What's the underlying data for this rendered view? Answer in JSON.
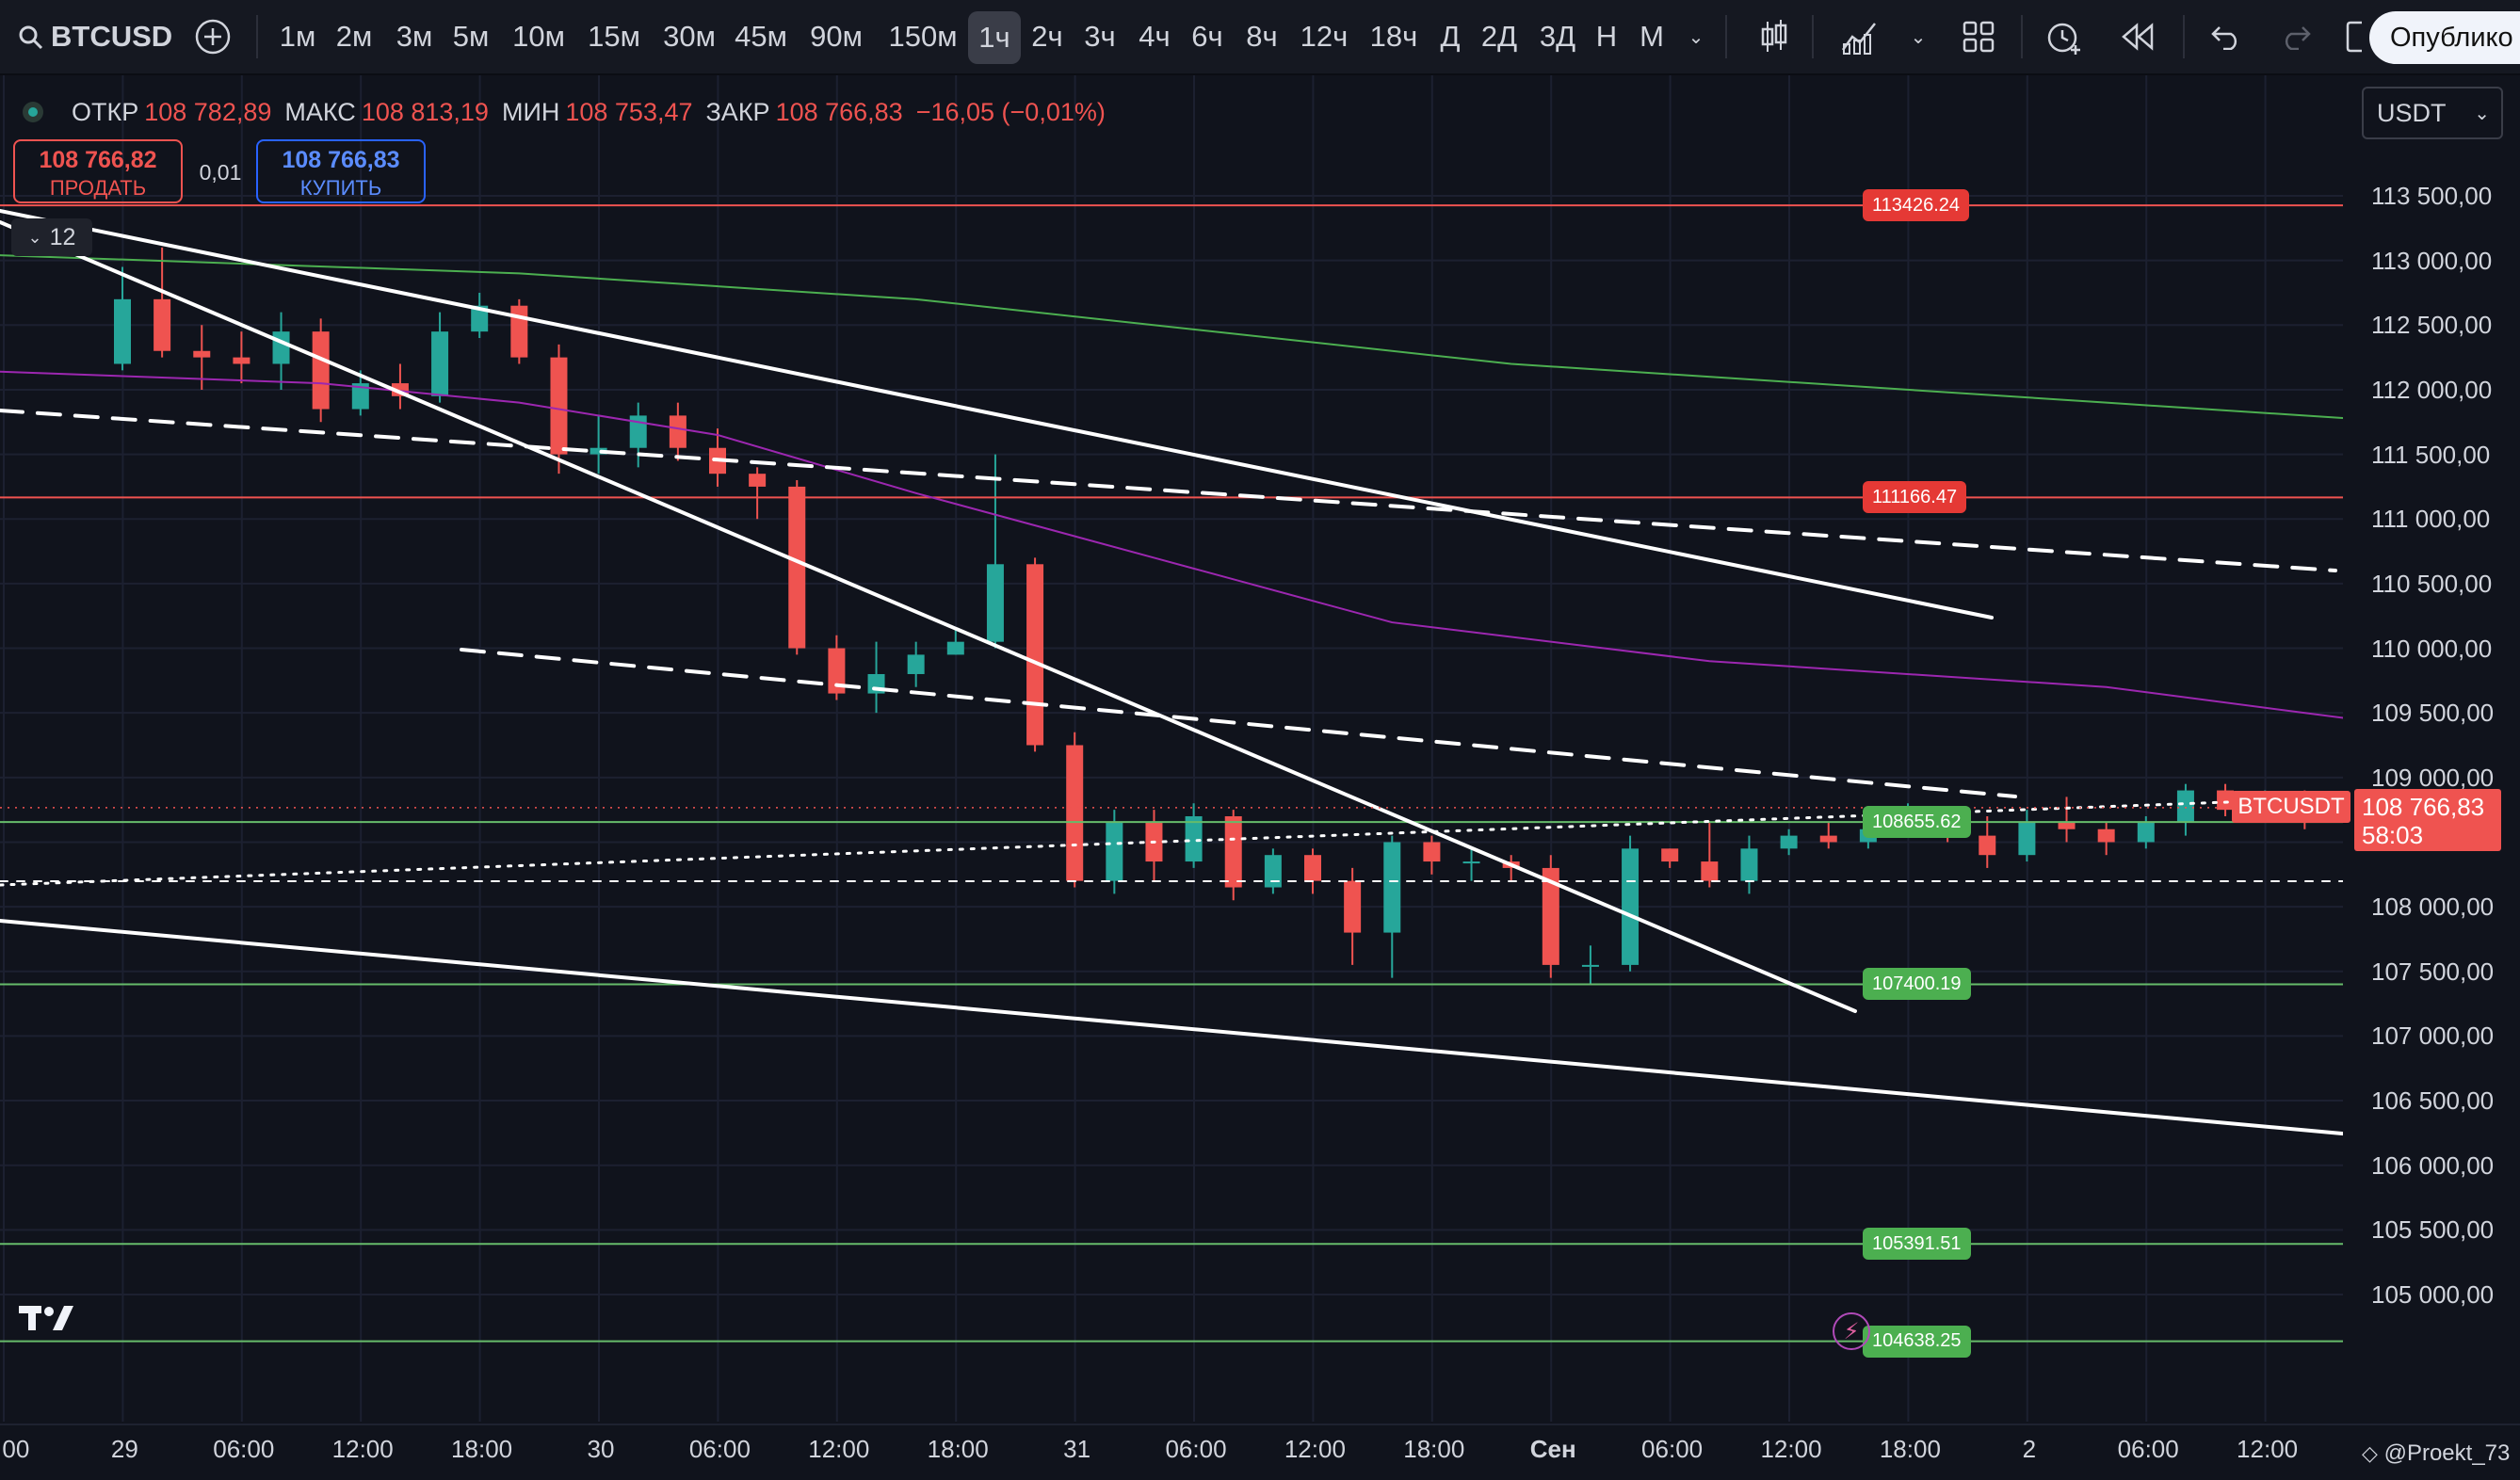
{
  "toolbar": {
    "symbol": "BTCUSD",
    "intervals": [
      "1м",
      "2м",
      "3м",
      "5м",
      "10м",
      "15м",
      "30м",
      "45м",
      "90м",
      "150м",
      "1ч",
      "2ч",
      "3ч",
      "4ч",
      "6ч",
      "8ч",
      "12ч",
      "18ч",
      "Д",
      "2Д",
      "3Д",
      "Н",
      "М"
    ],
    "active_interval": "1ч",
    "publish_label": "Опублико"
  },
  "legend": {
    "open_label": "ОТКР",
    "open": "108 782,89",
    "high_label": "МАКС",
    "high": "108 813,19",
    "low_label": "МИН",
    "low": "108 753,47",
    "close_label": "ЗАКР",
    "close": "108 766,83",
    "change": "−16,05 (−0,01%)"
  },
  "trade": {
    "sell_price": "108 766,82",
    "sell_label": "ПРОДАТЬ",
    "spread": "0,01",
    "buy_price": "108 766,83",
    "buy_label": "КУПИТЬ"
  },
  "currency": "USDT",
  "indicator_count": "12",
  "price_axis": [
    "113 500,00",
    "113 000,00",
    "112 500,00",
    "112 000,00",
    "111 500,00",
    "111 000,00",
    "110 500,00",
    "110 000,00",
    "109 500,00",
    "109 000,00",
    "108 000,00",
    "107 500,00",
    "107 000,00",
    "106 500,00",
    "106 000,00",
    "105 500,00",
    "105 000,00"
  ],
  "time_axis": [
    "3:00",
    "29",
    "06:00",
    "12:00",
    "18:00",
    "30",
    "06:00",
    "12:00",
    "18:00",
    "31",
    "06:00",
    "12:00",
    "18:00",
    "Сен",
    "06:00",
    "12:00",
    "18:00",
    "2",
    "06:00",
    "12:00"
  ],
  "level_tags": [
    "113426.24",
    "111166.47",
    "108655.62",
    "107400.19",
    "105391.51",
    "104638.25"
  ],
  "last_price": {
    "symbol": "BTCUSDT",
    "price": "108 766,83",
    "countdown": "58:03"
  },
  "watermark": "@Proekt_73",
  "colors": {
    "up": "#26a69a",
    "down": "#ef5350",
    "bg": "#10131c",
    "level_red": "#ef5350",
    "level_green": "#66bb6a"
  },
  "chart_data": {
    "type": "candlestick",
    "symbol": "BTCUSD",
    "interval": "1ч",
    "ylim": [
      104650,
      113750
    ],
    "horizontal_levels": [
      113426.24,
      111166.47,
      108655.62,
      107400.19,
      105391.51,
      104638.25
    ],
    "candles": [
      [
        112200,
        112700,
        112150,
        112950
      ],
      [
        112700,
        112300,
        112250,
        113100
      ],
      [
        112300,
        112250,
        112000,
        112500
      ],
      [
        112250,
        112200,
        112050,
        112450
      ],
      [
        112200,
        112450,
        112000,
        112600
      ],
      [
        112450,
        111850,
        111750,
        112550
      ],
      [
        111850,
        112050,
        111800,
        112150
      ],
      [
        112050,
        111950,
        111850,
        112200
      ],
      [
        111950,
        112450,
        111900,
        112600
      ],
      [
        112450,
        112650,
        112400,
        112750
      ],
      [
        112650,
        112250,
        112200,
        112700
      ],
      [
        112250,
        111500,
        111350,
        112350
      ],
      [
        111500,
        111550,
        111350,
        111800
      ],
      [
        111550,
        111800,
        111400,
        111900
      ],
      [
        111800,
        111550,
        111450,
        111900
      ],
      [
        111550,
        111350,
        111250,
        111700
      ],
      [
        111350,
        111250,
        111000,
        111400
      ],
      [
        111250,
        110000,
        109950,
        111300
      ],
      [
        110000,
        109650,
        109600,
        110100
      ],
      [
        109650,
        109800,
        109500,
        110050
      ],
      [
        109800,
        109950,
        109700,
        110050
      ],
      [
        109950,
        110050,
        109950,
        110150
      ],
      [
        110050,
        110650,
        110000,
        111500
      ],
      [
        110650,
        109250,
        109200,
        110700
      ],
      [
        109250,
        108200,
        108150,
        109350
      ],
      [
        108200,
        108650,
        108100,
        108750
      ],
      [
        108650,
        108350,
        108200,
        108750
      ],
      [
        108350,
        108700,
        108300,
        108800
      ],
      [
        108700,
        108150,
        108050,
        108750
      ],
      [
        108150,
        108400,
        108100,
        108450
      ],
      [
        108400,
        108200,
        108100,
        108450
      ],
      [
        108200,
        107800,
        107550,
        108300
      ],
      [
        107800,
        108500,
        107450,
        108550
      ],
      [
        108500,
        108350,
        108250,
        108550
      ],
      [
        108350,
        108350,
        108200,
        108450
      ],
      [
        108350,
        108300,
        108200,
        108400
      ],
      [
        108300,
        107550,
        107450,
        108400
      ],
      [
        107550,
        107550,
        107400,
        107700
      ],
      [
        107550,
        108450,
        107500,
        108550
      ],
      [
        108450,
        108350,
        108300,
        108450
      ],
      [
        108350,
        108200,
        108150,
        108650
      ],
      [
        108200,
        108450,
        108100,
        108550
      ],
      [
        108450,
        108550,
        108400,
        108600
      ],
      [
        108550,
        108500,
        108450,
        108650
      ],
      [
        108500,
        108600,
        108450,
        108750
      ],
      [
        108600,
        108700,
        108550,
        108800
      ],
      [
        108700,
        108550,
        108500,
        108750
      ],
      [
        108550,
        108400,
        108300,
        108700
      ],
      [
        108400,
        108650,
        108350,
        108750
      ],
      [
        108650,
        108600,
        108500,
        108850
      ],
      [
        108600,
        108500,
        108400,
        108650
      ],
      [
        108500,
        108650,
        108450,
        108700
      ],
      [
        108650,
        108900,
        108550,
        108950
      ],
      [
        108900,
        108750,
        108700,
        108950
      ],
      [
        108750,
        108850,
        108700,
        108900
      ],
      [
        108850,
        108750,
        108600,
        108900
      ],
      [
        108750,
        108650,
        108550,
        108850
      ],
      [
        108650,
        108900,
        108600,
        108950
      ],
      [
        108900,
        108650,
        108550,
        108950
      ],
      [
        108650,
        108600,
        108500,
        108700
      ],
      [
        108600,
        108550,
        108500,
        108650
      ],
      [
        108550,
        108800,
        108500,
        109150
      ],
      [
        108800,
        109350,
        108750,
        109450
      ],
      [
        109350,
        109300,
        109250,
        109450
      ],
      [
        109300,
        109150,
        109000,
        109350
      ],
      [
        109150,
        108800,
        108650,
        109300
      ],
      [
        108800,
        108700,
        108600,
        108850
      ],
      [
        108700,
        108650,
        108550,
        108800
      ],
      [
        108650,
        108700,
        108550,
        108800
      ],
      [
        108700,
        108900,
        108650,
        108950
      ],
      [
        108900,
        108500,
        108450,
        108950
      ],
      [
        108500,
        108550,
        108400,
        108600
      ],
      [
        108550,
        108450,
        108350,
        108650
      ],
      [
        108450,
        108350,
        108300,
        108500
      ],
      [
        108350,
        108300,
        108250,
        108450
      ],
      [
        108300,
        108400,
        108200,
        108500
      ],
      [
        108400,
        108700,
        108350,
        108750
      ],
      [
        108700,
        108950,
        108650,
        109000
      ],
      [
        108950,
        109050,
        108900,
        109100
      ],
      [
        109050,
        108950,
        108850,
        109200
      ],
      [
        108950,
        109050,
        108900,
        109100
      ],
      [
        109050,
        108850,
        108800,
        109100
      ],
      [
        108850,
        109000,
        108850,
        109050
      ],
      [
        109000,
        108850,
        108800,
        109100
      ],
      [
        108850,
        108250,
        108100,
        108900
      ],
      [
        108250,
        108150,
        108050,
        108300
      ],
      [
        108150,
        108250,
        108000,
        108300
      ],
      [
        108250,
        107800,
        107650,
        108300
      ],
      [
        107800,
        107500,
        107450,
        107950
      ],
      [
        107500,
        107550,
        107450,
        107650
      ],
      [
        107550,
        107300,
        107250,
        107600
      ],
      [
        107300,
        107800,
        107250,
        107850
      ],
      [
        107800,
        108000,
        107750,
        108050
      ],
      [
        108000,
        109400,
        107900,
        109500
      ],
      [
        109400,
        109600,
        109350,
        109800
      ],
      [
        109600,
        109500,
        109450,
        109900
      ],
      [
        109500,
        108550,
        108200,
        109550
      ],
      [
        108550,
        108750,
        108500,
        108850
      ]
    ]
  }
}
